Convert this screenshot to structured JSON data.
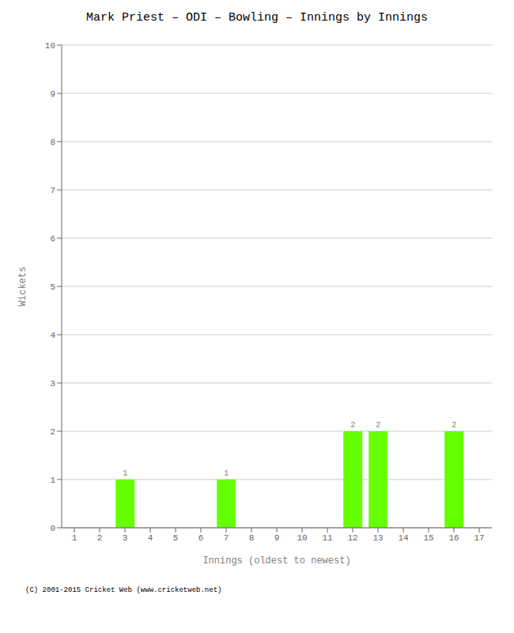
{
  "chart_data": {
    "type": "bar",
    "title": "Mark Priest – ODI – Bowling – Innings by Innings",
    "xlabel": "Innings (oldest to newest)",
    "ylabel": "Wickets",
    "categories": [
      1,
      2,
      3,
      4,
      5,
      6,
      7,
      8,
      9,
      10,
      11,
      12,
      13,
      14,
      15,
      16,
      17
    ],
    "values": [
      0,
      0,
      1,
      0,
      0,
      0,
      1,
      0,
      0,
      0,
      0,
      2,
      2,
      0,
      0,
      2,
      0
    ],
    "color": "#66ff00",
    "ylim": [
      0,
      10
    ],
    "yticks": [
      0,
      1,
      2,
      3,
      4,
      5,
      6,
      7,
      8,
      9,
      10
    ],
    "grid": true,
    "data_labels": true,
    "annotations": [
      "(C) 2001-2015 Cricket Web (www.cricketweb.net)"
    ]
  }
}
